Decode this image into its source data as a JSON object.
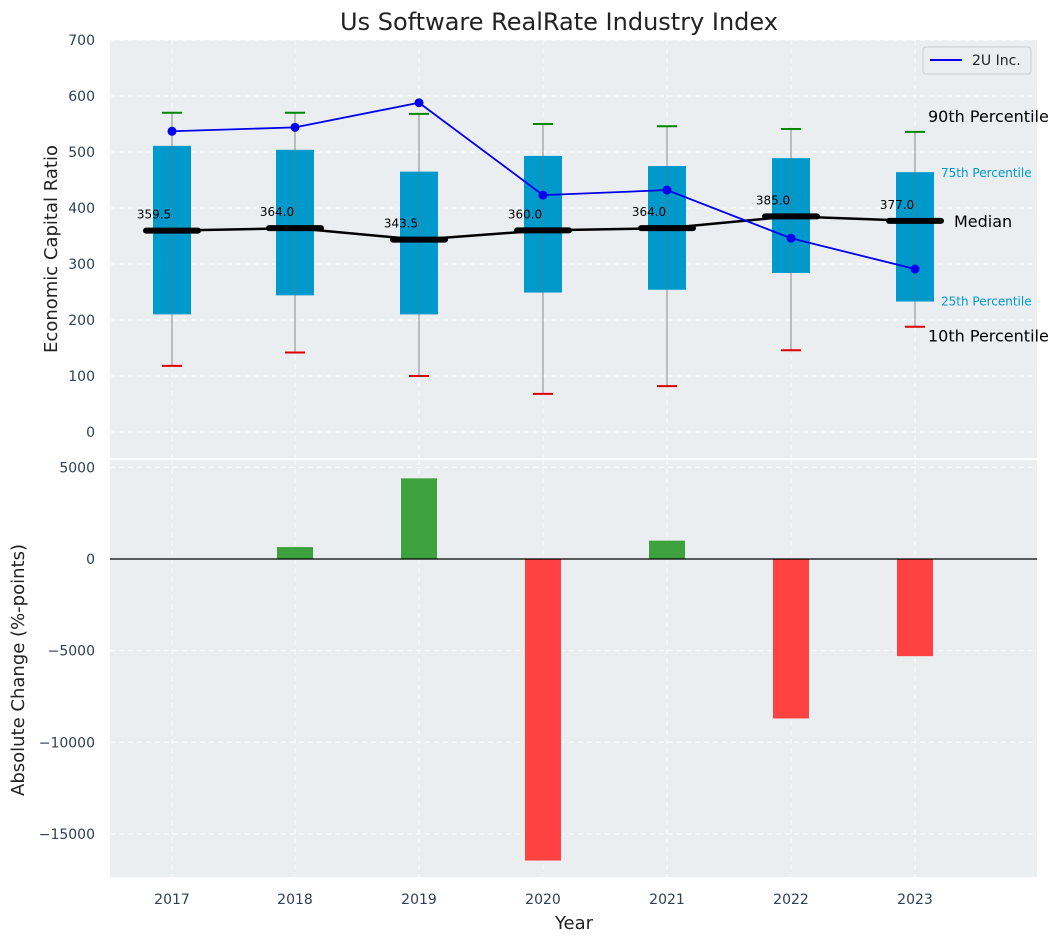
{
  "chart_data": [
    {
      "type": "box",
      "title": "Us Software RealRate Industry Index",
      "xlabel": "",
      "ylabel": "Economic Capital Ratio",
      "ylim": [
        -50,
        700
      ],
      "yticks": [
        0,
        100,
        200,
        300,
        400,
        500,
        600,
        700
      ],
      "categories": [
        "2017",
        "2018",
        "2019",
        "2020",
        "2021",
        "2022",
        "2023"
      ],
      "p10": [
        118,
        142,
        100,
        68,
        82,
        146,
        188
      ],
      "p25": [
        210,
        244,
        210,
        249,
        254,
        284,
        233
      ],
      "median": [
        359.5,
        364.0,
        343.5,
        360.0,
        364.0,
        385.0,
        377.0
      ],
      "p75": [
        511,
        504,
        465,
        493,
        475,
        489,
        464
      ],
      "p90": [
        570,
        570,
        568,
        550,
        546,
        541,
        536
      ],
      "median_labels": [
        "359.5",
        "364.0",
        "343.5",
        "360.0",
        "364.0",
        "385.0",
        "377.0"
      ],
      "series": [
        {
          "name": "2U Inc.",
          "values": [
            537,
            544,
            588,
            423,
            432,
            346,
            291
          ],
          "color": "#0000ee"
        }
      ],
      "annotations": {
        "p90": "90th Percentile",
        "p75": "75th Percentile",
        "median": "Median",
        "p25": "25th Percentile",
        "p10": "10th Percentile"
      },
      "legend": {
        "position": "top-right"
      }
    },
    {
      "type": "bar",
      "xlabel": "Year",
      "ylabel": "Absolute Change (%-points)",
      "ylim": [
        -17500,
        5000
      ],
      "yticks": [
        5000,
        0,
        -5000,
        -10000,
        -15000
      ],
      "ytick_labels": [
        "5000",
        "0",
        "−5000",
        "−10000",
        "−15000"
      ],
      "categories": [
        "2017",
        "2018",
        "2019",
        "2020",
        "2021",
        "2022",
        "2023"
      ],
      "values": [
        0,
        650,
        4400,
        -16450,
        1000,
        -8700,
        -5300
      ]
    }
  ],
  "colors": {
    "box": "#0099cc",
    "series_line": "#0000ee",
    "median": "#000000",
    "p90_cap": "#008800",
    "p10_cap": "#dd0000",
    "positive_bar": "#2e9a2e",
    "negative_bar": "#ff3333",
    "plot_bg": "#eaeef0"
  }
}
